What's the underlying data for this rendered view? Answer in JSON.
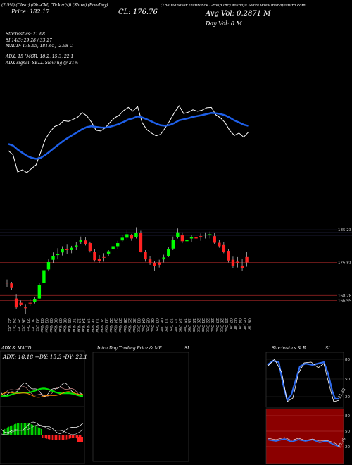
{
  "header": {
    "line1": "(2.5%) (Clear) (Old-Cld) (Ticker(s)) (Show) (PrevDay)",
    "price_left": "Price: 182.17",
    "close": "CL: 176.76",
    "company": "(The Hanover Insurance Group Inc) Munafa Sutra www.munafasutra.com",
    "avg_vol": "Avg Vol: 0.2871 M",
    "day_vol": "Day Vol: 0 M"
  },
  "stats": {
    "stochastics": "Stochastics: 21.68",
    "si": "SI 14/3: 29.28 / 33.27",
    "macd": "MACD: 178.65, 181.65, -2.98 C",
    "adx": "ADX: 15 [MGR: 18.2, 15.3, 22.1",
    "adx_signal": "ADX signal: SELL Slowing @ 21%"
  },
  "colors": {
    "up": "#00ff00",
    "down": "#ff2222",
    "ema": "#1e5fe8",
    "price_line": "#ffffff",
    "hline": "#8a2020",
    "grid": "#3a3a6a"
  },
  "chart_data": {
    "type": "candlestick",
    "dates": [
      "23 Oct",
      "24 Oct",
      "25 Oct",
      "26 Oct",
      "27 Oct",
      "30 Oct",
      "31 Oct",
      "01 Nov",
      "02 Nov",
      "03 Nov",
      "06 Nov",
      "07 Nov",
      "08 Nov",
      "09 Nov",
      "10 Nov",
      "13 Nov",
      "14 Nov",
      "15 Nov",
      "16 Nov",
      "17 Nov",
      "20 Nov",
      "21 Nov",
      "22 Nov",
      "24 Nov",
      "27 Nov",
      "28 Nov",
      "29 Nov",
      "30 Nov",
      "01 Dec",
      "04 Dec",
      "05 Dec",
      "06 Dec",
      "07 Dec",
      "08 Dec",
      "11 Dec",
      "12 Dec",
      "13 Dec",
      "14 Dec",
      "15 Dec",
      "18 Dec",
      "19 Dec",
      "20 Dec",
      "21 Dec",
      "22 Dec",
      "26 Dec",
      "27 Dec",
      "28 Dec",
      "29 Dec",
      "02 Jan",
      "03 Jan",
      "04 Jan",
      "05 Jan",
      "08 Jan"
    ],
    "ohlc": [
      [
        171.6,
        172.4,
        170.5,
        171.4
      ],
      [
        171.4,
        171.8,
        169.6,
        170.2
      ],
      [
        167.5,
        168.5,
        164.7,
        165.2
      ],
      [
        166.4,
        167.0,
        165.4,
        165.8
      ],
      [
        165.2,
        165.9,
        163.6,
        165.0
      ],
      [
        166.4,
        167.3,
        165.5,
        166.2
      ],
      [
        166.7,
        167.8,
        166.2,
        167.3
      ],
      [
        167.5,
        171.5,
        167.3,
        171.0
      ],
      [
        171.5,
        175.0,
        171.3,
        174.8
      ],
      [
        175.0,
        177.6,
        174.5,
        176.9
      ],
      [
        177.5,
        179.4,
        176.6,
        178.5
      ],
      [
        178.7,
        180.5,
        177.6,
        179.0
      ],
      [
        179.4,
        181.0,
        178.6,
        180.2
      ],
      [
        180.2,
        181.4,
        179.0,
        180.0
      ],
      [
        180.0,
        181.1,
        179.2,
        180.6
      ],
      [
        180.8,
        182.0,
        180.0,
        181.2
      ],
      [
        182.0,
        183.5,
        181.6,
        182.6
      ],
      [
        182.5,
        183.4,
        181.2,
        181.6
      ],
      [
        181.8,
        182.2,
        179.4,
        179.8
      ],
      [
        179.5,
        180.3,
        177.0,
        177.4
      ],
      [
        177.8,
        178.7,
        176.7,
        177.2
      ],
      [
        178.2,
        179.2,
        177.0,
        178.1
      ],
      [
        179.1,
        180.0,
        178.5,
        179.7
      ],
      [
        180.3,
        181.6,
        180.0,
        181.0
      ],
      [
        181.0,
        182.4,
        180.3,
        181.8
      ],
      [
        182.5,
        184.0,
        182.0,
        183.2
      ],
      [
        183.2,
        185.3,
        182.6,
        184.1
      ],
      [
        183.9,
        184.2,
        182.4,
        183.0
      ],
      [
        183.4,
        185.9,
        183.0,
        184.4
      ],
      [
        184.5,
        185.0,
        179.4,
        179.6
      ],
      [
        179.6,
        180.0,
        177.0,
        177.6
      ],
      [
        177.6,
        178.5,
        176.2,
        176.6
      ],
      [
        176.6,
        177.2,
        174.7,
        175.8
      ],
      [
        176.8,
        177.5,
        175.5,
        176.2
      ],
      [
        177.6,
        178.8,
        176.8,
        178.1
      ],
      [
        178.5,
        180.8,
        178.2,
        180.2
      ],
      [
        180.4,
        183.5,
        180.0,
        182.6
      ],
      [
        183.4,
        185.6,
        183.0,
        184.6
      ],
      [
        183.8,
        184.6,
        181.8,
        182.3
      ],
      [
        182.3,
        183.5,
        181.5,
        182.7
      ],
      [
        183.0,
        184.0,
        182.0,
        183.4
      ],
      [
        183.3,
        183.9,
        182.2,
        183.0
      ],
      [
        183.6,
        184.3,
        182.4,
        183.3
      ],
      [
        183.8,
        184.6,
        183.0,
        184.0
      ],
      [
        183.9,
        184.8,
        183.0,
        184.1
      ],
      [
        183.6,
        184.5,
        181.6,
        181.9
      ],
      [
        181.9,
        182.7,
        180.6,
        181.0
      ],
      [
        181.3,
        182.0,
        179.2,
        179.6
      ],
      [
        179.8,
        180.2,
        176.8,
        177.3
      ],
      [
        177.5,
        178.3,
        175.3,
        175.9
      ],
      [
        177.0,
        178.2,
        175.5,
        176.6
      ],
      [
        176.0,
        177.8,
        174.6,
        175.4
      ],
      [
        178.2,
        179.6,
        175.7,
        176.8
      ]
    ],
    "price_levels": [
      185.23,
      176.81,
      168.28,
      166.95
    ],
    "ylim": [
      163.6,
      186.0
    ]
  },
  "panels": {
    "adx_title": "ADX  & MACD",
    "adx_text": "ADX: 18.18  +DY: 15.3  -DY: 22.1",
    "intra_title": "Intra  Day Trading Price  & MR",
    "intra_si": "SI",
    "stoch_title": "Stochastics & R",
    "stoch_si": "SI",
    "stoch_axis": [
      "80",
      "50",
      "20"
    ],
    "stoch_value": "21.68",
    "rsi_axis": [
      "80",
      "50",
      "20"
    ],
    "rsi_value": "29.28"
  }
}
